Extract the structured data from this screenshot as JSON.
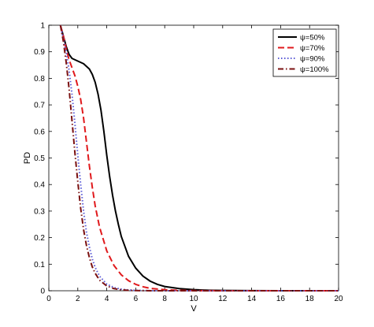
{
  "chart_data": {
    "type": "line",
    "xlabel": "V",
    "ylabel": "PD",
    "xlim": [
      0,
      20
    ],
    "ylim": [
      0,
      1
    ],
    "xticks": [
      0,
      2,
      4,
      6,
      8,
      10,
      12,
      14,
      16,
      18,
      20
    ],
    "yticks": [
      0,
      0.1,
      0.2,
      0.3,
      0.4,
      0.5,
      0.6,
      0.7,
      0.8,
      0.9,
      1
    ],
    "grid": false,
    "legend_position": "top-right",
    "series": [
      {
        "name": "ψ=50%",
        "color": "#000000",
        "dash": "solid",
        "x": [
          0.8,
          1.0,
          1.2,
          1.4,
          1.6,
          2.0,
          2.4,
          2.8,
          3.0,
          3.2,
          3.4,
          3.6,
          3.8,
          4.0,
          4.2,
          4.4,
          4.6,
          4.8,
          5.0,
          5.5,
          6.0,
          6.5,
          7.0,
          7.5,
          8.0,
          9.0,
          10.0,
          11.0,
          12.0,
          14.0,
          16.0,
          18.0,
          20.0
        ],
        "y": [
          1.0,
          0.96,
          0.92,
          0.89,
          0.875,
          0.865,
          0.855,
          0.835,
          0.815,
          0.785,
          0.74,
          0.68,
          0.6,
          0.51,
          0.43,
          0.36,
          0.3,
          0.25,
          0.205,
          0.13,
          0.085,
          0.055,
          0.036,
          0.024,
          0.016,
          0.008,
          0.004,
          0.002,
          0.001,
          0.0004,
          0.0001,
          0.0,
          0.0
        ]
      },
      {
        "name": "ψ=70%",
        "color": "#e0191c",
        "dash": "dashed",
        "x": [
          0.8,
          1.0,
          1.2,
          1.4,
          1.6,
          1.8,
          2.0,
          2.2,
          2.4,
          2.6,
          2.8,
          3.0,
          3.2,
          3.5,
          4.0,
          4.5,
          5.0,
          5.5,
          6.0,
          6.5,
          7.0,
          8.0,
          9.0,
          10.0,
          12.0,
          14.0,
          16.0,
          20.0
        ],
        "y": [
          1.0,
          0.96,
          0.91,
          0.87,
          0.84,
          0.81,
          0.77,
          0.72,
          0.65,
          0.56,
          0.47,
          0.39,
          0.32,
          0.24,
          0.15,
          0.095,
          0.06,
          0.038,
          0.024,
          0.015,
          0.009,
          0.004,
          0.0015,
          0.0006,
          0.0001,
          0.0,
          0.0,
          0.0
        ]
      },
      {
        "name": "ψ=90%",
        "color": "#5b5bd6",
        "dash": "dotted",
        "x": [
          0.8,
          1.0,
          1.2,
          1.4,
          1.6,
          1.8,
          2.0,
          2.2,
          2.4,
          2.6,
          2.8,
          3.0,
          3.2,
          3.5,
          4.0,
          4.5,
          5.0,
          5.5,
          6.0,
          7.0,
          8.0,
          9.0,
          10.0,
          12.0,
          20.0
        ],
        "y": [
          1.0,
          0.95,
          0.9,
          0.83,
          0.74,
          0.63,
          0.51,
          0.4,
          0.3,
          0.22,
          0.165,
          0.12,
          0.088,
          0.055,
          0.025,
          0.012,
          0.006,
          0.003,
          0.0015,
          0.0004,
          0.0001,
          0.0,
          0.0,
          0.0,
          0.0
        ]
      },
      {
        "name": "ψ=100%",
        "color": "#7a1010",
        "dash": "dashdot",
        "x": [
          0.8,
          1.0,
          1.2,
          1.4,
          1.6,
          1.8,
          2.0,
          2.2,
          2.4,
          2.6,
          2.8,
          3.0,
          3.2,
          3.5,
          4.0,
          4.5,
          5.0,
          5.5,
          6.0,
          7.0,
          8.0,
          10.0,
          12.0,
          20.0
        ],
        "y": [
          1.0,
          0.94,
          0.86,
          0.76,
          0.64,
          0.52,
          0.41,
          0.31,
          0.23,
          0.17,
          0.125,
          0.09,
          0.066,
          0.04,
          0.018,
          0.008,
          0.0035,
          0.0015,
          0.0007,
          0.0001,
          0.0,
          0.0,
          0.0,
          0.0
        ]
      }
    ]
  }
}
